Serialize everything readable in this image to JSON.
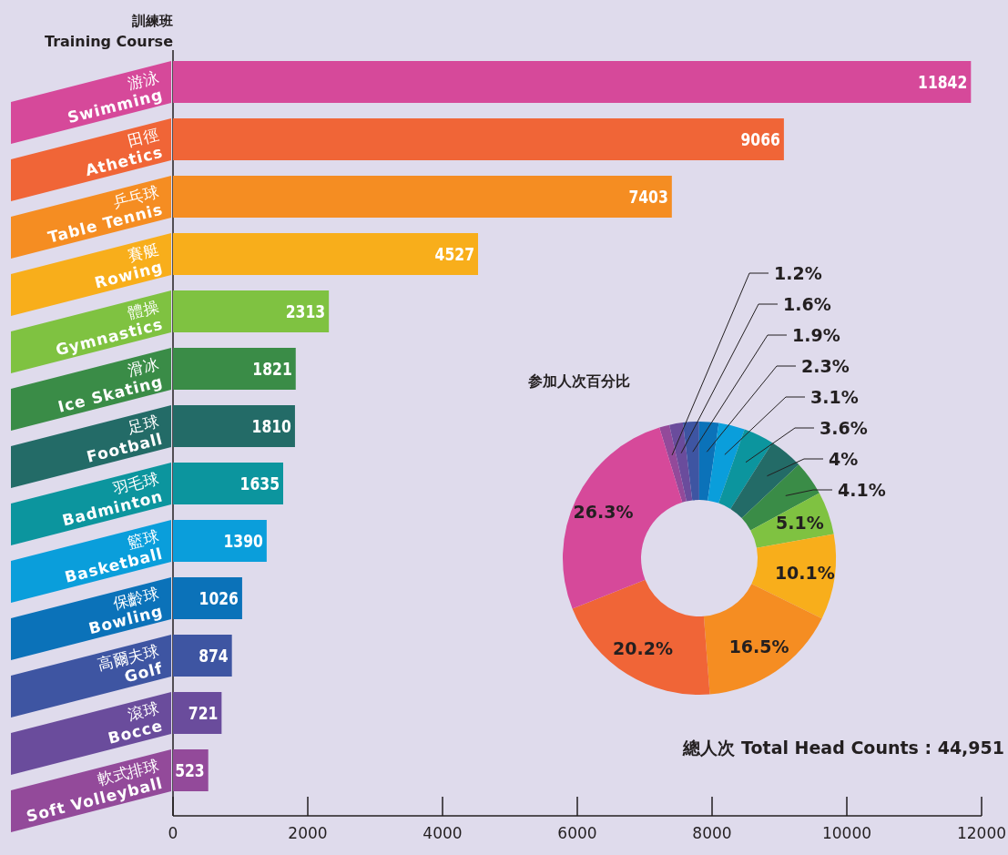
{
  "chart_data": [
    {
      "type": "bar",
      "orientation": "horizontal",
      "ylabel": "訓練班 Training Course",
      "categories": [
        "游泳 Swimming",
        "田徑 Athetics",
        "乒乓球 Table Tennis",
        "賽艇 Rowing",
        "體操 Gymnastics",
        "滑冰 Ice Skating",
        "足球 Football",
        "羽毛球 Badminton",
        "籃球 Basketball",
        "保齡球 Bowling",
        "高爾夫球 Golf",
        "滾球 Bocce",
        "軟式排球 Soft Volleyball"
      ],
      "values": [
        11842,
        9066,
        7403,
        4527,
        2313,
        1821,
        1810,
        1635,
        1390,
        1026,
        874,
        721,
        523
      ],
      "colors": [
        "#d6499a",
        "#f06537",
        "#f58d22",
        "#f8ae1b",
        "#7fc241",
        "#3a8c47",
        "#236b67",
        "#0c959e",
        "#0a9edb",
        "#0b72b9",
        "#3e55a2",
        "#6a4c9c",
        "#934a9a"
      ],
      "xlim": [
        0,
        12000
      ],
      "xticks": [
        0,
        2000,
        4000,
        6000,
        8000,
        10000,
        12000
      ],
      "data_labels": true
    },
    {
      "type": "donut",
      "title": "参加人次百分比",
      "categories": [
        null,
        null,
        null,
        null,
        null,
        null,
        null,
        null,
        null,
        null,
        null,
        null,
        null
      ],
      "values": [
        26.3,
        20.2,
        16.5,
        10.1,
        5.1,
        4.1,
        4,
        3.6,
        3.1,
        2.3,
        1.9,
        1.6,
        1.2
      ],
      "value_labels": [
        "26.3%",
        "20.2%",
        "16.5%",
        "10.1%",
        "5.1%",
        "4.1%",
        "4%",
        "3.6%",
        "3.1%",
        "2.3%",
        "1.9%",
        "1.6%",
        "1.2%"
      ],
      "colors": [
        "#d6499a",
        "#f06537",
        "#f58d22",
        "#f8ae1b",
        "#7fc241",
        "#3a8c47",
        "#236b67",
        "#0c959e",
        "#0a9edb",
        "#0b72b9",
        "#3e55a2",
        "#6a4c9c",
        "#934a9a"
      ],
      "annotations": [
        "總人次 Total Head Counts : 44,951"
      ]
    }
  ]
}
